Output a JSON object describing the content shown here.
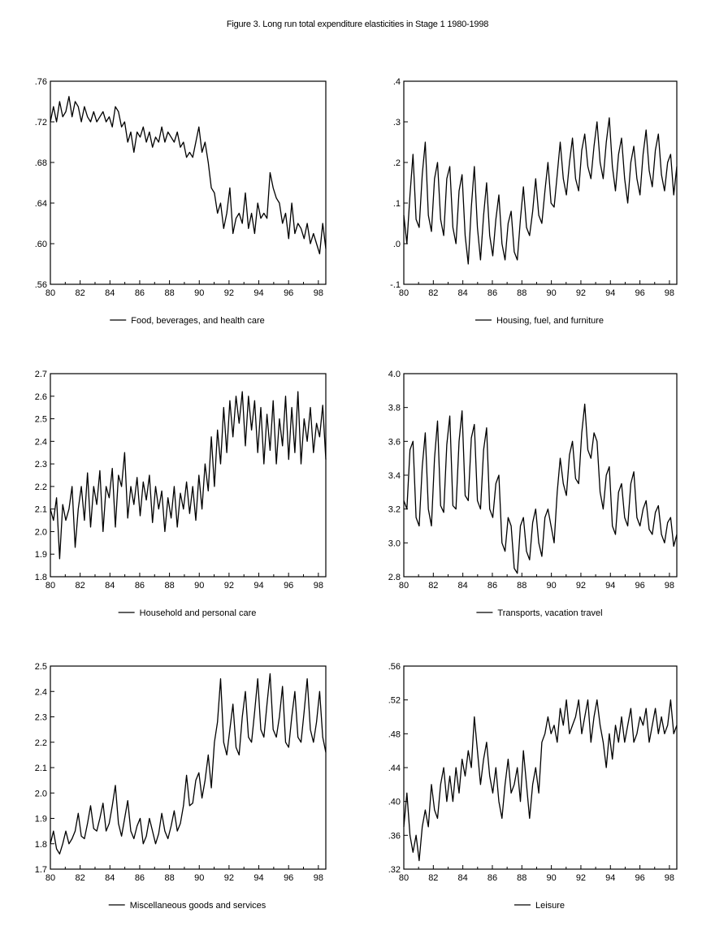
{
  "title": "Figure 3. Long run total expenditure elasticities in Stage 1 1980-1998",
  "chart_data": [
    {
      "type": "line",
      "legend": "Food, beverages, and health care",
      "yticks": [
        ".56",
        ".60",
        ".64",
        ".68",
        ".72",
        ".76"
      ],
      "ylim": [
        0.56,
        0.76
      ],
      "xticks": [
        "80",
        "82",
        "84",
        "86",
        "88",
        "90",
        "92",
        "94",
        "96",
        "98"
      ],
      "xlim": [
        1980,
        1998.5
      ],
      "values": [
        0.72,
        0.735,
        0.72,
        0.74,
        0.725,
        0.73,
        0.745,
        0.725,
        0.74,
        0.735,
        0.72,
        0.735,
        0.725,
        0.72,
        0.73,
        0.72,
        0.725,
        0.73,
        0.72,
        0.725,
        0.715,
        0.735,
        0.73,
        0.715,
        0.72,
        0.7,
        0.71,
        0.69,
        0.71,
        0.705,
        0.715,
        0.7,
        0.71,
        0.695,
        0.705,
        0.7,
        0.715,
        0.7,
        0.71,
        0.705,
        0.7,
        0.71,
        0.695,
        0.7,
        0.685,
        0.69,
        0.685,
        0.7,
        0.715,
        0.69,
        0.7,
        0.68,
        0.655,
        0.65,
        0.63,
        0.64,
        0.615,
        0.63,
        0.655,
        0.61,
        0.625,
        0.63,
        0.62,
        0.65,
        0.615,
        0.63,
        0.61,
        0.64,
        0.625,
        0.63,
        0.625,
        0.67,
        0.655,
        0.645,
        0.64,
        0.62,
        0.63,
        0.605,
        0.64,
        0.61,
        0.62,
        0.615,
        0.605,
        0.62,
        0.6,
        0.61,
        0.6,
        0.59,
        0.62,
        0.595
      ]
    },
    {
      "type": "line",
      "legend": "Housing, fuel, and furniture",
      "yticks": [
        "-.1",
        ".0",
        ".1",
        ".2",
        ".3",
        ".4"
      ],
      "ylim": [
        -0.1,
        0.4
      ],
      "xticks": [
        "80",
        "82",
        "84",
        "86",
        "88",
        "90",
        "92",
        "94",
        "96",
        "98"
      ],
      "xlim": [
        1980,
        1998.5
      ],
      "values": [
        0.07,
        0.0,
        0.12,
        0.22,
        0.06,
        0.04,
        0.17,
        0.25,
        0.07,
        0.03,
        0.16,
        0.2,
        0.06,
        0.02,
        0.16,
        0.19,
        0.04,
        0.0,
        0.13,
        0.17,
        0.02,
        -0.05,
        0.09,
        0.19,
        0.04,
        -0.04,
        0.07,
        0.15,
        0.02,
        -0.03,
        0.06,
        0.12,
        0.0,
        -0.04,
        0.05,
        0.08,
        -0.02,
        -0.04,
        0.06,
        0.14,
        0.04,
        0.02,
        0.08,
        0.16,
        0.07,
        0.05,
        0.13,
        0.2,
        0.1,
        0.09,
        0.17,
        0.25,
        0.16,
        0.12,
        0.2,
        0.26,
        0.16,
        0.13,
        0.23,
        0.27,
        0.19,
        0.16,
        0.24,
        0.3,
        0.2,
        0.16,
        0.25,
        0.31,
        0.19,
        0.13,
        0.22,
        0.26,
        0.16,
        0.1,
        0.2,
        0.24,
        0.16,
        0.12,
        0.22,
        0.28,
        0.18,
        0.14,
        0.23,
        0.27,
        0.17,
        0.13,
        0.2,
        0.22,
        0.12,
        0.19
      ]
    },
    {
      "type": "line",
      "legend": "Household and personal care",
      "yticks": [
        "1.8",
        "1.9",
        "2.0",
        "2.1",
        "2.2",
        "2.3",
        "2.4",
        "2.5",
        "2.6",
        "2.7"
      ],
      "ylim": [
        1.8,
        2.7
      ],
      "xticks": [
        "80",
        "82",
        "84",
        "86",
        "88",
        "90",
        "92",
        "94",
        "96",
        "98"
      ],
      "xlim": [
        1980,
        1998.5
      ],
      "values": [
        2.1,
        2.05,
        2.15,
        1.88,
        2.12,
        2.05,
        2.1,
        2.2,
        1.93,
        2.1,
        2.2,
        2.05,
        2.26,
        2.02,
        2.2,
        2.12,
        2.27,
        2.0,
        2.2,
        2.15,
        2.28,
        2.02,
        2.25,
        2.2,
        2.35,
        2.06,
        2.2,
        2.12,
        2.24,
        2.07,
        2.22,
        2.14,
        2.25,
        2.04,
        2.2,
        2.1,
        2.18,
        2.0,
        2.15,
        2.06,
        2.2,
        2.02,
        2.17,
        2.1,
        2.22,
        2.08,
        2.2,
        2.05,
        2.25,
        2.1,
        2.3,
        2.18,
        2.42,
        2.2,
        2.45,
        2.3,
        2.55,
        2.35,
        2.58,
        2.42,
        2.6,
        2.48,
        2.62,
        2.38,
        2.6,
        2.45,
        2.58,
        2.35,
        2.55,
        2.3,
        2.52,
        2.36,
        2.58,
        2.3,
        2.5,
        2.38,
        2.6,
        2.32,
        2.55,
        2.35,
        2.62,
        2.3,
        2.5,
        2.4,
        2.55,
        2.35,
        2.48,
        2.42,
        2.56,
        2.32
      ]
    },
    {
      "type": "line",
      "legend": "Transports, vacation travel",
      "yticks": [
        "2.8",
        "3.0",
        "3.2",
        "3.4",
        "3.6",
        "3.8",
        "4.0"
      ],
      "ylim": [
        2.8,
        4.0
      ],
      "xticks": [
        "80",
        "82",
        "84",
        "86",
        "88",
        "90",
        "92",
        "94",
        "96",
        "98"
      ],
      "xlim": [
        1980,
        1998.5
      ],
      "values": [
        3.25,
        3.2,
        3.55,
        3.6,
        3.15,
        3.1,
        3.45,
        3.65,
        3.2,
        3.1,
        3.5,
        3.72,
        3.22,
        3.18,
        3.58,
        3.75,
        3.22,
        3.2,
        3.6,
        3.78,
        3.28,
        3.25,
        3.62,
        3.7,
        3.25,
        3.2,
        3.55,
        3.68,
        3.2,
        3.15,
        3.35,
        3.4,
        3.0,
        2.95,
        3.15,
        3.1,
        2.85,
        2.82,
        3.1,
        3.15,
        2.95,
        2.9,
        3.12,
        3.2,
        3.0,
        2.92,
        3.15,
        3.2,
        3.1,
        3.0,
        3.3,
        3.5,
        3.35,
        3.28,
        3.52,
        3.6,
        3.38,
        3.35,
        3.65,
        3.82,
        3.55,
        3.5,
        3.65,
        3.6,
        3.3,
        3.2,
        3.4,
        3.45,
        3.1,
        3.05,
        3.3,
        3.35,
        3.15,
        3.1,
        3.35,
        3.42,
        3.15,
        3.1,
        3.2,
        3.25,
        3.08,
        3.05,
        3.18,
        3.22,
        3.05,
        3.0,
        3.12,
        3.15,
        2.98,
        3.05
      ]
    },
    {
      "type": "line",
      "legend": "Miscellaneous goods and services",
      "yticks": [
        "1.7",
        "1.8",
        "1.9",
        "2.0",
        "2.1",
        "2.2",
        "2.3",
        "2.4",
        "2.5"
      ],
      "ylim": [
        1.7,
        2.5
      ],
      "xticks": [
        "80",
        "82",
        "84",
        "86",
        "88",
        "90",
        "92",
        "94",
        "96",
        "98"
      ],
      "xlim": [
        1980,
        1998.5
      ],
      "values": [
        1.8,
        1.85,
        1.78,
        1.76,
        1.8,
        1.85,
        1.8,
        1.82,
        1.85,
        1.92,
        1.83,
        1.82,
        1.88,
        1.95,
        1.86,
        1.85,
        1.9,
        1.96,
        1.85,
        1.88,
        1.95,
        2.03,
        1.88,
        1.83,
        1.9,
        1.97,
        1.85,
        1.82,
        1.87,
        1.9,
        1.8,
        1.83,
        1.9,
        1.85,
        1.8,
        1.84,
        1.92,
        1.85,
        1.82,
        1.87,
        1.93,
        1.85,
        1.88,
        1.95,
        2.07,
        1.95,
        1.96,
        2.05,
        2.08,
        1.98,
        2.05,
        2.15,
        2.02,
        2.2,
        2.28,
        2.45,
        2.2,
        2.15,
        2.25,
        2.35,
        2.18,
        2.15,
        2.3,
        2.4,
        2.22,
        2.2,
        2.32,
        2.45,
        2.25,
        2.22,
        2.35,
        2.47,
        2.25,
        2.22,
        2.3,
        2.42,
        2.2,
        2.18,
        2.3,
        2.4,
        2.22,
        2.2,
        2.32,
        2.45,
        2.25,
        2.2,
        2.28,
        2.4,
        2.22,
        2.16
      ]
    },
    {
      "type": "line",
      "legend": "Leisure",
      "yticks": [
        ".32",
        ".36",
        ".40",
        ".44",
        ".48",
        ".52",
        ".56"
      ],
      "ylim": [
        0.32,
        0.56
      ],
      "xticks": [
        "80",
        "82",
        "84",
        "86",
        "88",
        "90",
        "92",
        "94",
        "96",
        "98"
      ],
      "xlim": [
        1980,
        1998.5
      ],
      "values": [
        0.37,
        0.41,
        0.36,
        0.34,
        0.36,
        0.33,
        0.37,
        0.39,
        0.37,
        0.42,
        0.39,
        0.38,
        0.42,
        0.44,
        0.4,
        0.43,
        0.4,
        0.44,
        0.41,
        0.45,
        0.43,
        0.46,
        0.44,
        0.5,
        0.46,
        0.42,
        0.45,
        0.47,
        0.43,
        0.41,
        0.44,
        0.4,
        0.38,
        0.42,
        0.45,
        0.41,
        0.42,
        0.44,
        0.4,
        0.46,
        0.42,
        0.38,
        0.42,
        0.44,
        0.41,
        0.47,
        0.48,
        0.5,
        0.48,
        0.49,
        0.47,
        0.51,
        0.49,
        0.52,
        0.48,
        0.49,
        0.5,
        0.52,
        0.48,
        0.5,
        0.52,
        0.47,
        0.5,
        0.52,
        0.49,
        0.47,
        0.44,
        0.48,
        0.45,
        0.49,
        0.47,
        0.5,
        0.47,
        0.49,
        0.51,
        0.47,
        0.48,
        0.5,
        0.49,
        0.51,
        0.47,
        0.49,
        0.51,
        0.48,
        0.5,
        0.48,
        0.49,
        0.52,
        0.48,
        0.49
      ]
    }
  ]
}
